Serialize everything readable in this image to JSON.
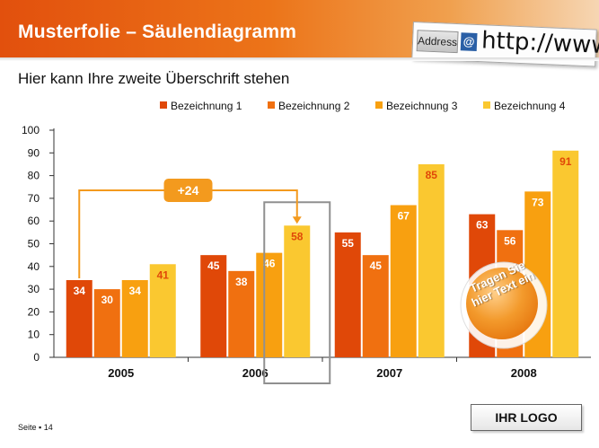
{
  "slide": {
    "title": "Musterfolie – Säulendiagramm",
    "subtitle": "Hier kann Ihre zweite Überschrift stehen"
  },
  "address_bar": {
    "label": "Address",
    "icon": "at-sign-icon",
    "url": "http://www"
  },
  "chart_data": {
    "type": "bar",
    "categories": [
      "2005",
      "2006",
      "2007",
      "2008"
    ],
    "series": [
      {
        "name": "Bezeichnung 1",
        "color": "#e04808",
        "values": [
          34,
          45,
          55,
          63
        ]
      },
      {
        "name": "Bezeichnung 2",
        "color": "#f07010",
        "values": [
          30,
          38,
          45,
          56
        ]
      },
      {
        "name": "Bezeichnung 3",
        "color": "#f8a010",
        "values": [
          34,
          46,
          67,
          73
        ]
      },
      {
        "name": "Bezeichnung 4",
        "color": "#fac830",
        "values": [
          41,
          58,
          85,
          91
        ]
      }
    ],
    "ylim": [
      0,
      100
    ],
    "yticks": [
      "0",
      "10",
      "20",
      "30",
      "40",
      "50",
      "60",
      "70",
      "80",
      "90",
      "100"
    ],
    "legend_position": "top-right",
    "grid": false,
    "annotation": {
      "label": "+24",
      "from": "2005 · Bezeichnung 1",
      "to": "2006 · Bezeichnung 4"
    }
  },
  "badge": {
    "text": "Tragen Sie hier Text ein"
  },
  "footer": {
    "page": "Seite ▪ 14",
    "logo": "IHR LOGO"
  }
}
